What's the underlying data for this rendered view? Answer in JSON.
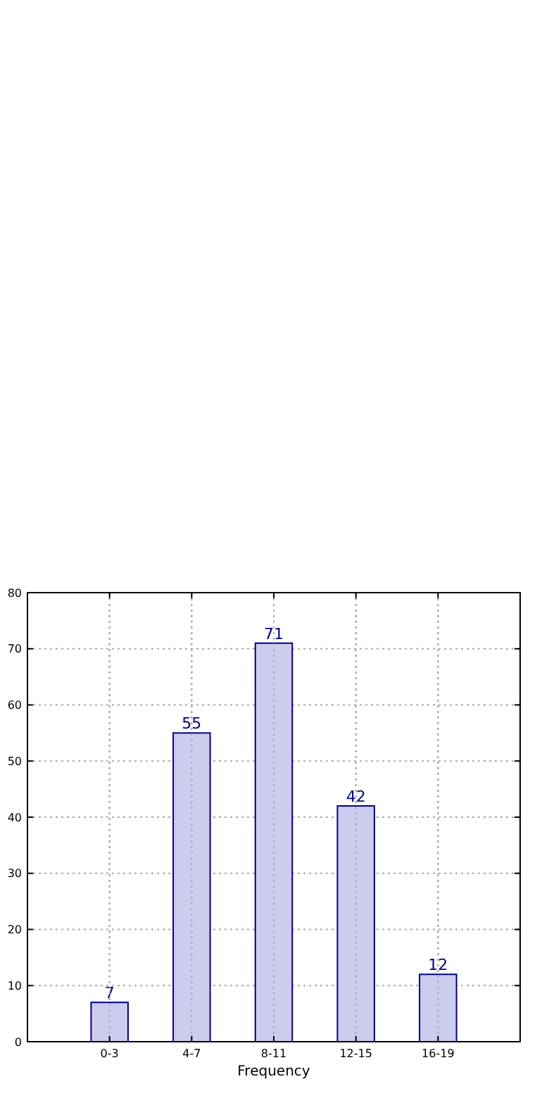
{
  "chart_data": {
    "type": "bar",
    "xlabel": "Frequency",
    "categories": [
      "0-3",
      "4-7",
      "8-11",
      "12-15",
      "16-19"
    ],
    "values": [
      7,
      55,
      71,
      42,
      12
    ],
    "color": "#ccccee",
    "ylim": [
      0,
      80
    ],
    "yticks": [
      0,
      10,
      20,
      30,
      40,
      50,
      60,
      70,
      80
    ],
    "grid": true,
    "data_labels": true
  }
}
